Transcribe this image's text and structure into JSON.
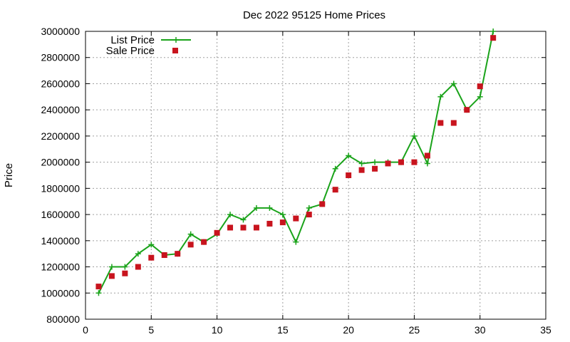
{
  "chart_data": {
    "type": "line",
    "title": "Dec 2022 95125 Home Prices",
    "xlabel": "",
    "ylabel": "Price",
    "xlim": [
      0,
      35
    ],
    "ylim": [
      800000,
      3000000
    ],
    "xticks": [
      0,
      5,
      10,
      15,
      20,
      25,
      30,
      35
    ],
    "yticks": [
      800000,
      1000000,
      1200000,
      1400000,
      1600000,
      1800000,
      2000000,
      2200000,
      2400000,
      2600000,
      2800000,
      3000000
    ],
    "grid": true,
    "legend_position": "top-left",
    "series": [
      {
        "name": "List Price",
        "style": "line-with-plus-markers",
        "color": "#1aa31a",
        "x": [
          1,
          2,
          3,
          4,
          5,
          6,
          7,
          8,
          9,
          10,
          11,
          12,
          13,
          14,
          15,
          16,
          17,
          18,
          19,
          20,
          21,
          22,
          23,
          24,
          25,
          26,
          27,
          28,
          29,
          30,
          31
        ],
        "values": [
          1000000,
          1200000,
          1200000,
          1300000,
          1370000,
          1290000,
          1300000,
          1450000,
          1390000,
          1450000,
          1600000,
          1560000,
          1650000,
          1650000,
          1600000,
          1390000,
          1650000,
          1680000,
          1950000,
          2050000,
          1990000,
          2000000,
          2000000,
          2000000,
          2200000,
          1990000,
          2500000,
          2600000,
          2400000,
          2500000,
          3000000
        ]
      },
      {
        "name": "Sale Price",
        "style": "square-markers",
        "color": "#c8141e",
        "x": [
          1,
          2,
          3,
          4,
          5,
          6,
          7,
          8,
          9,
          10,
          11,
          12,
          13,
          14,
          15,
          16,
          17,
          18,
          19,
          20,
          21,
          22,
          23,
          24,
          25,
          26,
          27,
          28,
          29,
          30,
          31
        ],
        "values": [
          1050000,
          1130000,
          1150000,
          1200000,
          1270000,
          1290000,
          1300000,
          1370000,
          1390000,
          1460000,
          1500000,
          1500000,
          1500000,
          1530000,
          1540000,
          1570000,
          1600000,
          1680000,
          1790000,
          1900000,
          1940000,
          1950000,
          1990000,
          2000000,
          2000000,
          2050000,
          2300000,
          2300000,
          2400000,
          2580000,
          2950000
        ]
      }
    ]
  }
}
